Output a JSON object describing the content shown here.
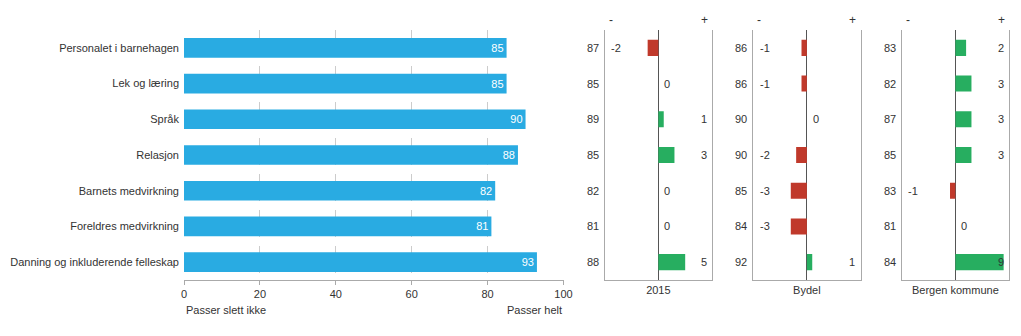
{
  "chart_data": [
    {
      "type": "bar",
      "orientation": "horizontal",
      "categories": [
        "Personalet i barnehagen",
        "Lek og læring",
        "Språk",
        "Relasjon",
        "Barnets medvirkning",
        "Foreldres medvirkning",
        "Danning og inkluderende felleskap"
      ],
      "values": [
        85,
        85,
        90,
        88,
        82,
        81,
        93
      ],
      "color": "#29abe2",
      "xlim": [
        0,
        100
      ],
      "xticks": [
        0,
        20,
        40,
        60,
        80,
        100
      ],
      "grid": true,
      "data_labels": true,
      "annotations": [
        "Passer slett ikke",
        "Passer helt"
      ]
    },
    {
      "type": "bar",
      "orientation": "horizontal",
      "xlabel": "2015",
      "categories": [
        "Personalet i barnehagen",
        "Lek og læring",
        "Språk",
        "Relasjon",
        "Barnets medvirkning",
        "Foreldres medvirkning",
        "Danning og inkluderende felleskap"
      ],
      "values": [
        -2,
        0,
        1,
        3,
        0,
        0,
        5
      ],
      "colors": [
        "#c0392b",
        "#27ae60",
        "#27ae60",
        "#27ae60",
        "#27ae60",
        "#27ae60",
        "#27ae60"
      ],
      "scores": [
        87,
        85,
        89,
        85,
        82,
        81,
        88
      ],
      "xlim": [
        -10,
        10
      ],
      "grid": false,
      "data_labels": true,
      "tick_labels": false,
      "annotations": [
        "-",
        "+"
      ]
    },
    {
      "type": "bar",
      "orientation": "horizontal",
      "xlabel": "Bydel",
      "categories": [
        "Personalet i barnehagen",
        "Lek og læring",
        "Språk",
        "Relasjon",
        "Barnets medvirkning",
        "Foreldres medvirkning",
        "Danning og inkluderende felleskap"
      ],
      "values": [
        -1,
        -1,
        0,
        -2,
        -3,
        -3,
        1
      ],
      "colors": [
        "#c0392b",
        "#c0392b",
        "#27ae60",
        "#c0392b",
        "#c0392b",
        "#c0392b",
        "#27ae60"
      ],
      "scores": [
        86,
        86,
        90,
        90,
        85,
        84,
        92
      ],
      "xlim": [
        -10,
        10
      ],
      "grid": false,
      "data_labels": true,
      "tick_labels": false,
      "annotations": [
        "-",
        "+"
      ]
    },
    {
      "type": "bar",
      "orientation": "horizontal",
      "xlabel": "Bergen kommune",
      "categories": [
        "Personalet i barnehagen",
        "Lek og læring",
        "Språk",
        "Relasjon",
        "Barnets medvirkning",
        "Foreldres medvirkning",
        "Danning og inkluderende felleskap"
      ],
      "values": [
        2,
        3,
        3,
        3,
        -1,
        0,
        9
      ],
      "colors": [
        "#27ae60",
        "#27ae60",
        "#27ae60",
        "#27ae60",
        "#c0392b",
        "#27ae60",
        "#27ae60"
      ],
      "scores": [
        83,
        82,
        87,
        85,
        83,
        81,
        84
      ],
      "xlim": [
        -10,
        10
      ],
      "grid": false,
      "data_labels": true,
      "tick_labels": false,
      "annotations": [
        "-",
        "+"
      ]
    }
  ]
}
